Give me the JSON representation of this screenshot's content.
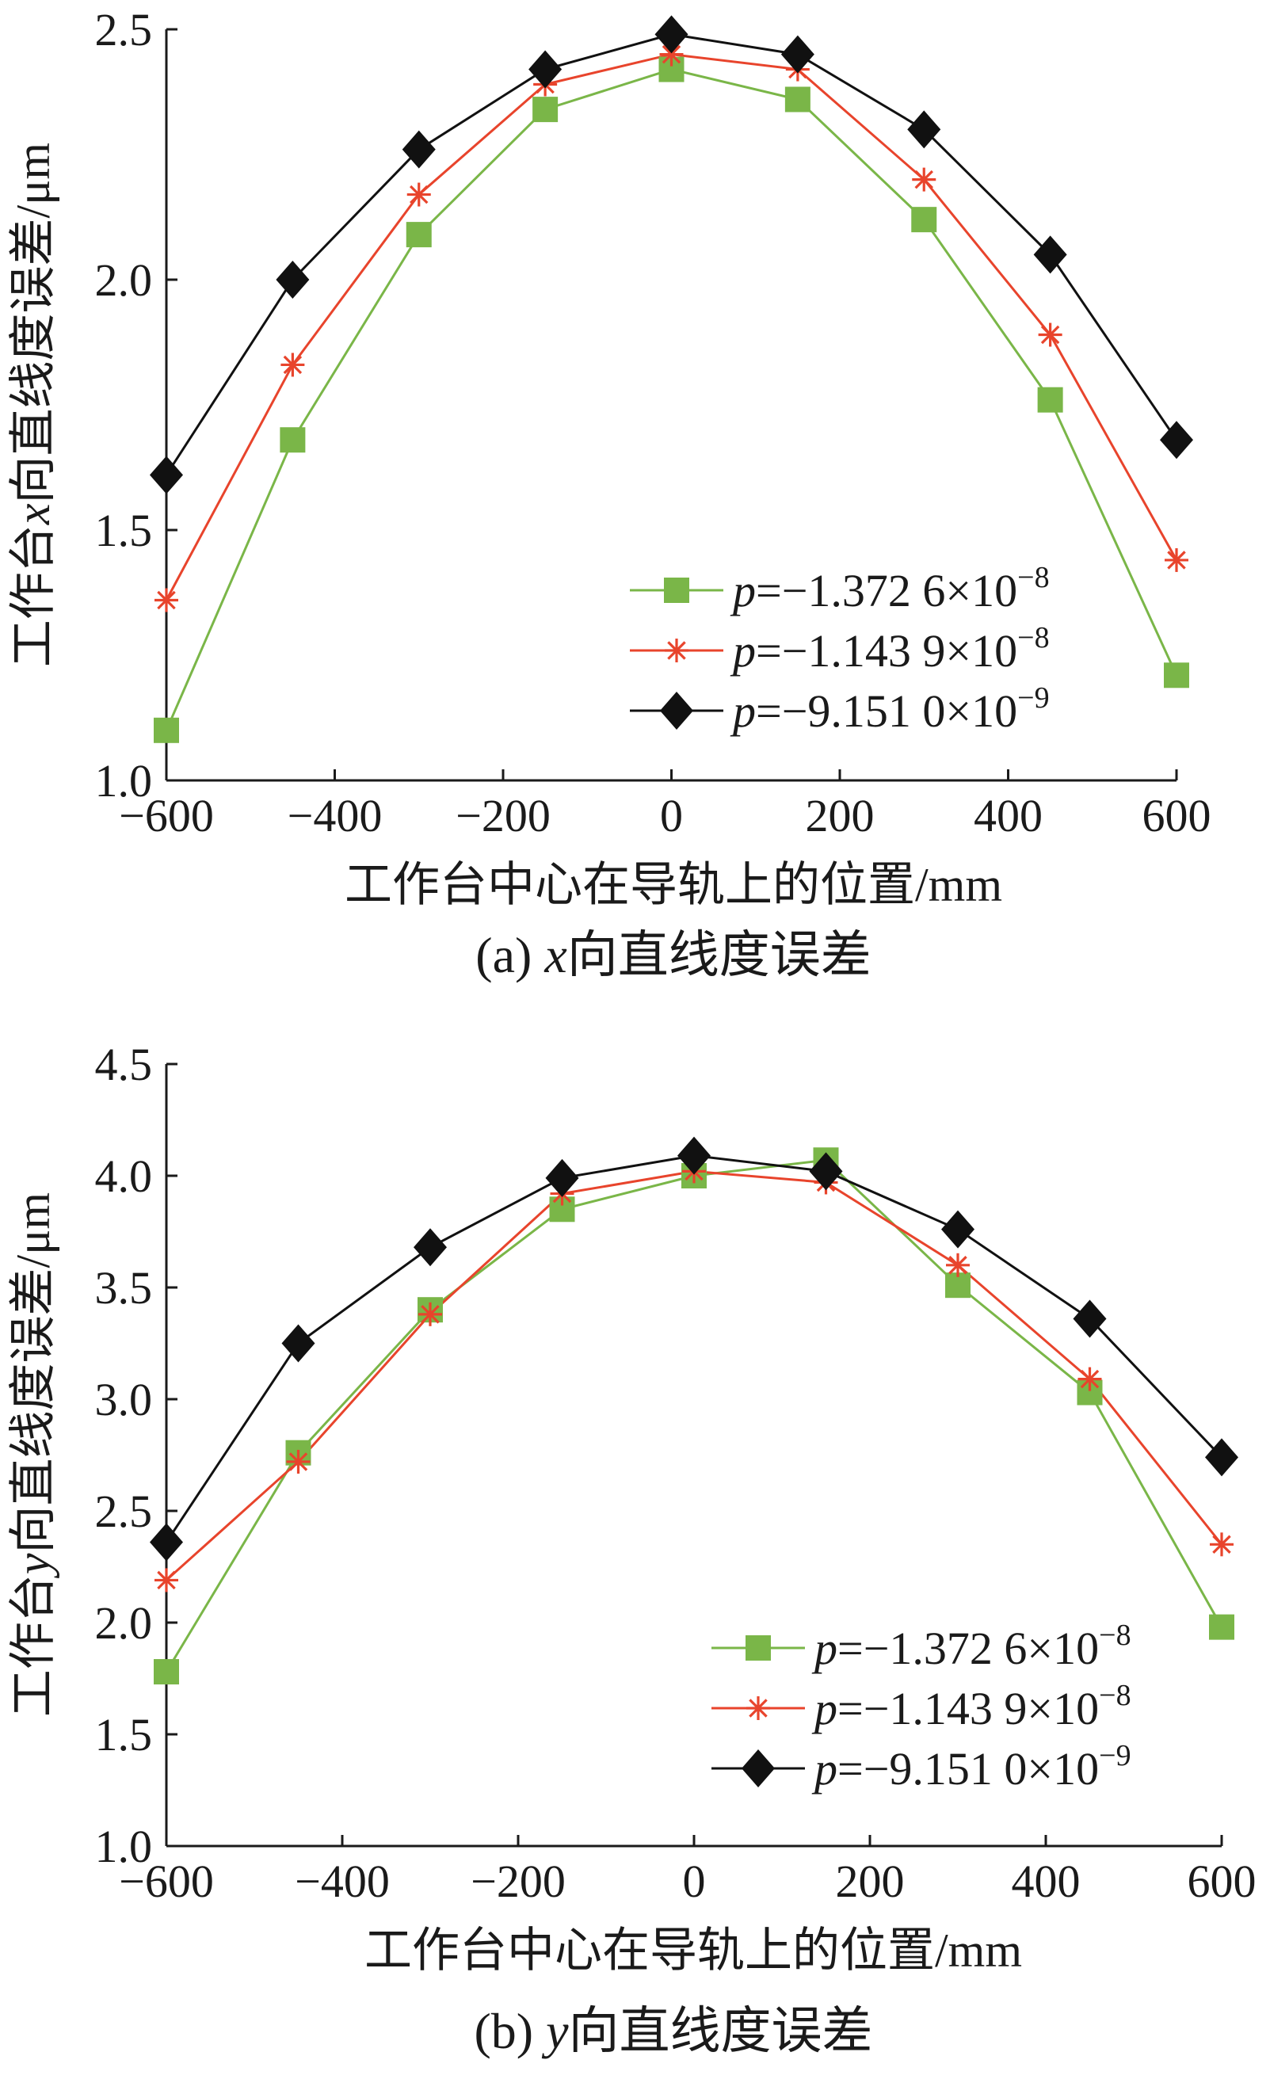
{
  "chart_data": [
    {
      "type": "line",
      "caption": "(a)  x向直线度误差",
      "caption_prefix": "(a)  ",
      "caption_var": "x",
      "caption_rest": "向直线度误差",
      "xlabel": "工作台中心在导轨上的位置/mm",
      "ylabel": "工作台x向直线度误差/μm",
      "ylabel_pre": "工作台",
      "ylabel_var": "x",
      "ylabel_post": "向直线度误差/μm",
      "xlim": [
        -600,
        600
      ],
      "ylim": [
        1.0,
        2.5
      ],
      "xticks": [
        -600,
        -400,
        -200,
        0,
        200,
        400,
        600
      ],
      "xtick_labels": [
        "−600",
        "−400",
        "−200",
        "0",
        "200",
        "400",
        "600"
      ],
      "yticks": [
        1.0,
        1.5,
        2.0,
        2.5
      ],
      "ytick_labels": [
        "1.0",
        "1.5",
        "2.0",
        "2.5"
      ],
      "grid": false,
      "legend_position": "lower-right",
      "series": [
        {
          "name": "p=−1.372 6×10^−8",
          "legend_var": "p",
          "legend_value": "=−1.372 6×10",
          "legend_exp": "−8",
          "color": "#7ab648",
          "marker": "square",
          "x": [
            -600,
            -450,
            -300,
            -150,
            0,
            150,
            300,
            450,
            600
          ],
          "y": [
            1.1,
            1.68,
            2.09,
            2.34,
            2.42,
            2.36,
            2.12,
            1.76,
            1.21
          ]
        },
        {
          "name": "p=−1.143 9×10^−8",
          "legend_var": "p",
          "legend_value": "=−1.143 9×10",
          "legend_exp": "−8",
          "color": "#e8442c",
          "marker": "star",
          "x": [
            -600,
            -450,
            -300,
            -150,
            0,
            150,
            300,
            450,
            600
          ],
          "y": [
            1.36,
            1.83,
            2.17,
            2.39,
            2.45,
            2.42,
            2.2,
            1.89,
            1.44
          ]
        },
        {
          "name": "p=−9.151 0×10^−9",
          "legend_var": "p",
          "legend_value": "=−9.151 0×10",
          "legend_exp": "−9",
          "color": "#111111",
          "marker": "diamond",
          "x": [
            -600,
            -450,
            -300,
            -150,
            0,
            150,
            300,
            450,
            600
          ],
          "y": [
            1.61,
            2.0,
            2.26,
            2.42,
            2.49,
            2.45,
            2.3,
            2.05,
            1.68
          ]
        }
      ]
    },
    {
      "type": "line",
      "caption": "(b)  y向直线度误差",
      "caption_prefix": "(b)  ",
      "caption_var": "y",
      "caption_rest": "向直线度误差",
      "xlabel": "工作台中心在导轨上的位置/mm",
      "ylabel": "工作台y向直线度误差/μm",
      "ylabel_pre": "工作台",
      "ylabel_var": "y",
      "ylabel_post": "向直线度误差/μm",
      "xlim": [
        -600,
        600
      ],
      "ylim": [
        1.0,
        4.5
      ],
      "xticks": [
        -600,
        -400,
        -200,
        0,
        200,
        400,
        600
      ],
      "xtick_labels": [
        "−600",
        "−400",
        "−200",
        "0",
        "200",
        "400",
        "600"
      ],
      "yticks": [
        1.0,
        1.5,
        2.0,
        2.5,
        3.0,
        3.5,
        4.0,
        4.5
      ],
      "ytick_labels": [
        "1.0",
        "1.5",
        "2.0",
        "2.5",
        "3.0",
        "3.5",
        "4.0",
        "4.5"
      ],
      "grid": false,
      "legend_position": "lower-right",
      "series": [
        {
          "name": "p=−1.372 6×10^−8",
          "legend_var": "p",
          "legend_value": "=−1.372 6×10",
          "legend_exp": "−8",
          "color": "#7ab648",
          "marker": "square",
          "x": [
            -600,
            -450,
            -300,
            -150,
            0,
            150,
            300,
            450,
            600
          ],
          "y": [
            1.78,
            2.76,
            3.4,
            3.85,
            4.0,
            4.07,
            3.51,
            3.03,
            1.98
          ]
        },
        {
          "name": "p=−1.143 9×10^−8",
          "legend_var": "p",
          "legend_value": "=−1.143 9×10",
          "legend_exp": "−8",
          "color": "#e8442c",
          "marker": "star",
          "x": [
            -600,
            -450,
            -300,
            -150,
            0,
            150,
            300,
            450,
            600
          ],
          "y": [
            2.19,
            2.72,
            3.38,
            3.92,
            4.02,
            3.97,
            3.6,
            3.09,
            2.35
          ]
        },
        {
          "name": "p=−9.151 0×10^−9",
          "legend_var": "p",
          "legend_value": "=−9.151 0×10",
          "legend_exp": "−9",
          "color": "#111111",
          "marker": "diamond",
          "x": [
            -600,
            -450,
            -300,
            -150,
            0,
            150,
            300,
            450,
            600
          ],
          "y": [
            2.36,
            3.25,
            3.68,
            3.99,
            4.09,
            4.02,
            3.76,
            3.36,
            2.74
          ]
        }
      ]
    }
  ]
}
